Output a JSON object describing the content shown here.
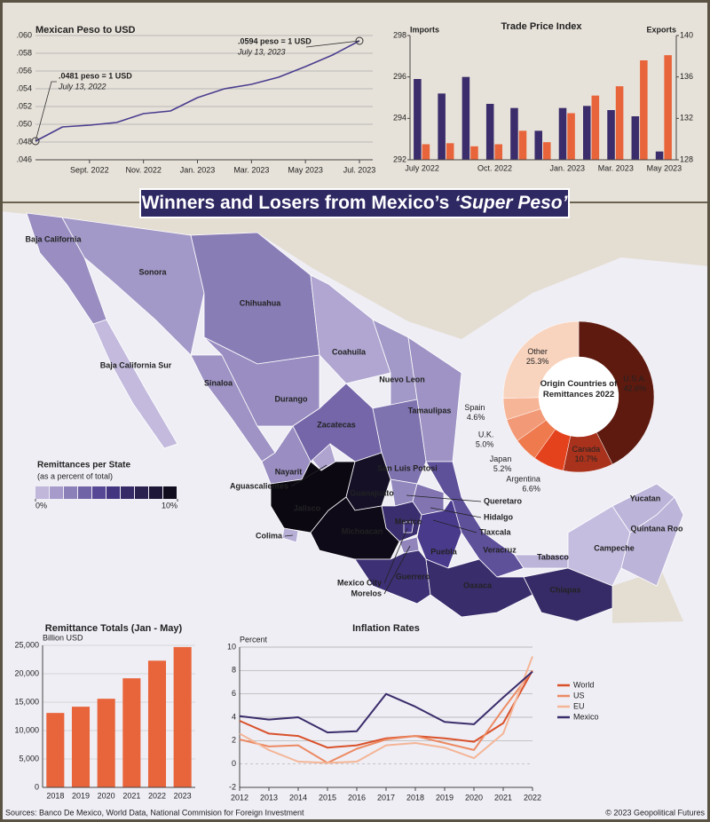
{
  "title": "Winners and Losers from Mexico’s",
  "title_emphasis": "‘Super Peso’",
  "source": "Sources: Banco De Mexico, World Data, National Commision for Foreign Investment",
  "credit": "© 2023 Geopolitical Futures",
  "chart_data": [
    {
      "type": "line",
      "title": "Mexican Peso to USD",
      "x": [
        "2022-07",
        "2022-08",
        "2022-09",
        "2022-10",
        "2022-11",
        "2022-12",
        "2023-01",
        "2023-02",
        "2023-03",
        "2023-04",
        "2023-05",
        "2023-06",
        "2023-07"
      ],
      "values": [
        0.0481,
        0.0497,
        0.0499,
        0.0502,
        0.0512,
        0.0515,
        0.053,
        0.054,
        0.0545,
        0.0553,
        0.0565,
        0.0578,
        0.0594
      ],
      "color": "#4a3d8f",
      "xlim": [
        "2022-07",
        "2023-07"
      ],
      "xticks": [
        {
          "value": "2022-09",
          "label": "Sept. 2022"
        },
        {
          "value": "2022-11",
          "label": "Nov. 2022"
        },
        {
          "value": "2023-01",
          "label": "Jan. 2023"
        },
        {
          "value": "2023-03",
          "label": "Mar. 2023"
        },
        {
          "value": "2023-05",
          "label": "May 2023"
        },
        {
          "value": "2023-07",
          "label": "Jul. 2023"
        }
      ],
      "ylim": [
        0.046,
        0.06
      ],
      "yticks": [
        {
          "value": 0.046,
          "label": ".046"
        },
        {
          "value": 0.048,
          "label": ".048"
        },
        {
          "value": 0.05,
          "label": ".050"
        },
        {
          "value": 0.052,
          "label": ".052"
        },
        {
          "value": 0.054,
          "label": ".054"
        },
        {
          "value": 0.056,
          "label": ".056"
        },
        {
          "value": 0.058,
          "label": ".058"
        },
        {
          "value": 0.06,
          "label": ".060"
        }
      ],
      "grid": true,
      "annotations": [
        {
          "text": ".0481 peso = 1 USD",
          "note": "July 13, 2022"
        },
        {
          "text": ".0594 peso = 1 USD",
          "note": "July 13, 2023"
        }
      ]
    },
    {
      "type": "bar",
      "title": "Trade Price Index",
      "categories": [
        "July 2022",
        null,
        null,
        "Oct. 2022",
        null,
        null,
        "Jan. 2023",
        null,
        "Mar. 2023",
        null,
        "May 2023"
      ],
      "series": [
        {
          "name": "Imports",
          "color": "#3b2d6b",
          "values": [
            295.9,
            295.2,
            296.0,
            294.7,
            294.5,
            293.4,
            294.5,
            294.6,
            294.4,
            294.1,
            292.4
          ]
        },
        {
          "name": "Exports",
          "color": "#e8643a",
          "axis": "y2",
          "values": [
            129.5,
            129.6,
            129.3,
            129.5,
            130.8,
            129.7,
            132.5,
            134.2,
            135.1,
            137.6,
            138.1
          ]
        }
      ],
      "ylim": [
        292,
        298
      ],
      "yticks": [
        292,
        294,
        296,
        298
      ],
      "y2lim": [
        128,
        140
      ],
      "y2ticks": [
        128,
        132,
        136,
        140
      ]
    },
    {
      "type": "choropleth",
      "title": "Remittances per State",
      "subtitle": "(as a percent of total)",
      "colorscale": [
        "#cdc5e4",
        "#4a3a8c",
        "#0b0812"
      ],
      "scale": [
        {
          "value": 0,
          "label": "0%"
        },
        {
          "value": 10,
          "label": "10%"
        }
      ],
      "states": [
        {
          "name": "Baja California",
          "value": 2.0
        },
        {
          "name": "Baja California Sur",
          "value": 0.4
        },
        {
          "name": "Sonora",
          "value": 1.6
        },
        {
          "name": "Chihuahua",
          "value": 2.6
        },
        {
          "name": "Coahuila",
          "value": 1.1
        },
        {
          "name": "Nuevo Leon",
          "value": 1.6
        },
        {
          "name": "Tamaulipas",
          "value": 1.8
        },
        {
          "name": "Sinaloa",
          "value": 1.8
        },
        {
          "name": "Durango",
          "value": 2.0
        },
        {
          "name": "Zacatecas",
          "value": 3.4
        },
        {
          "name": "Nayarit",
          "value": 2.0
        },
        {
          "name": "Aguascalientes",
          "value": 1.2
        },
        {
          "name": "San Luis Potosi",
          "value": 3.0
        },
        {
          "name": "Jalisco",
          "value": 10.0
        },
        {
          "name": "Guanajuato",
          "value": 9.2
        },
        {
          "name": "Queretaro",
          "value": 2.2
        },
        {
          "name": "Hidalgo",
          "value": 2.9
        },
        {
          "name": "Tlaxcala",
          "value": 1.0
        },
        {
          "name": "Mexico",
          "value": 6.2
        },
        {
          "name": "Mexico City",
          "value": 5.2
        },
        {
          "name": "Colima",
          "value": 0.8
        },
        {
          "name": "Michoacan",
          "value": 9.8
        },
        {
          "name": "Morelos",
          "value": 2.3
        },
        {
          "name": "Puebla",
          "value": 5.0
        },
        {
          "name": "Veracruz",
          "value": 4.2
        },
        {
          "name": "Guerrero",
          "value": 6.0
        },
        {
          "name": "Oaxaca",
          "value": 6.3
        },
        {
          "name": "Tabasco",
          "value": 0.6
        },
        {
          "name": "Campeche",
          "value": 0.3
        },
        {
          "name": "Yucatan",
          "value": 0.6
        },
        {
          "name": "Quintana Roo",
          "value": 0.6
        },
        {
          "name": "Chiapas",
          "value": 6.5
        }
      ]
    },
    {
      "type": "pie",
      "title": "Origin Countries of Remittances 2022",
      "categories": [
        "U.S.A.",
        "Canada",
        "Argentina",
        "Japan",
        "U.K.",
        "Spain",
        "Other"
      ],
      "values": [
        42.6,
        10.7,
        6.6,
        5.2,
        5.0,
        4.6,
        25.3
      ],
      "value_labels": [
        "42.6%",
        "10.7%",
        "6.6%",
        "5.2%",
        "5.0%",
        "4.6%",
        "25.3%"
      ],
      "colors": [
        "#5e1a0f",
        "#a8321c",
        "#e4421c",
        "#ee7a4e",
        "#f29a78",
        "#f7b598",
        "#f8d3bd"
      ]
    },
    {
      "type": "bar",
      "title": "Remittance Totals (Jan - May)",
      "y_label": "Billion USD",
      "categories": [
        "2018",
        "2019",
        "2020",
        "2021",
        "2022",
        "2023"
      ],
      "values": [
        13100,
        14200,
        15600,
        19200,
        22300,
        24700
      ],
      "color": "#e8643a",
      "ylim": [
        0,
        25000
      ],
      "yticks": [
        0,
        {
          "value": 5000,
          "label": "5,000"
        },
        {
          "value": 10000,
          "label": "10,000"
        },
        {
          "value": 15000,
          "label": "15,000"
        },
        {
          "value": 20000,
          "label": "20,000"
        },
        {
          "value": 25000,
          "label": "25,000"
        }
      ],
      "grid": true
    },
    {
      "type": "line",
      "title": "Inflation Rates",
      "y_label": "Percent",
      "x": [
        2012,
        2013,
        2014,
        2015,
        2016,
        2017,
        2018,
        2019,
        2020,
        2021,
        2022
      ],
      "series": [
        {
          "name": "World",
          "color": "#d9512a",
          "values": [
            3.7,
            2.6,
            2.4,
            1.4,
            1.6,
            2.2,
            2.4,
            2.2,
            1.9,
            3.5,
            8.0
          ]
        },
        {
          "name": "US",
          "color": "#ec8a63",
          "values": [
            2.1,
            1.5,
            1.6,
            0.1,
            1.3,
            2.1,
            2.4,
            1.8,
            1.2,
            4.7,
            8.0
          ]
        },
        {
          "name": "EU",
          "color": "#f4b596",
          "values": [
            2.6,
            1.2,
            0.2,
            0.1,
            0.2,
            1.6,
            1.8,
            1.4,
            0.5,
            2.6,
            9.2
          ]
        },
        {
          "name": "Mexico",
          "color": "#3b2d6b",
          "values": [
            4.1,
            3.8,
            4.0,
            2.7,
            2.8,
            6.0,
            4.9,
            3.6,
            3.4,
            5.7,
            7.9
          ]
        }
      ],
      "xlim": [
        2012,
        2022
      ],
      "xticks": [
        2012,
        2013,
        2014,
        2015,
        2016,
        2017,
        2018,
        2019,
        2020,
        2021,
        2022
      ],
      "ylim": [
        -2,
        10
      ],
      "yticks": [
        -2,
        0,
        2,
        4,
        6,
        8,
        10
      ],
      "grid": true
    }
  ]
}
